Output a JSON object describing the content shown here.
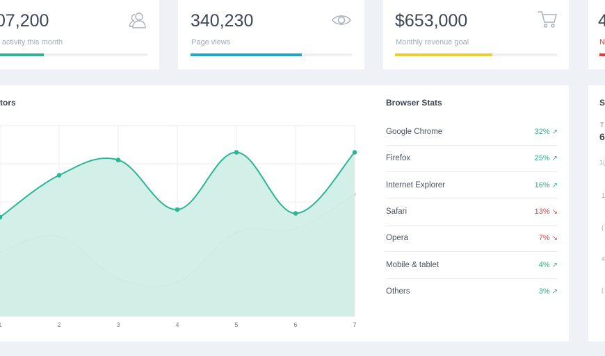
{
  "stats": [
    {
      "value": "07,200",
      "label": "r activity this month",
      "icon": "users-icon",
      "color": "#2cb494",
      "fill": 0.33
    },
    {
      "value": "340,230",
      "label": "Page views",
      "icon": "eye-icon",
      "color": "#1fa7c8",
      "fill": 0.69
    },
    {
      "value": "$653,000",
      "label": "Monthly revenue goal",
      "icon": "cart-icon",
      "color": "#f0cd2d",
      "fill": 0.6
    },
    {
      "value": "4",
      "label": "N",
      "icon": "",
      "color": "#e53935",
      "fill": 0.5
    }
  ],
  "visitors": {
    "title": "tors"
  },
  "chart_data": {
    "type": "area",
    "title": "tors",
    "x": [
      1,
      2,
      3,
      4,
      5,
      6,
      7
    ],
    "series": [
      {
        "values": [
          24,
          13,
          9,
          22,
          7,
          23,
          7
        ],
        "color": "#2cb494"
      },
      {
        "values": [
          33,
          29,
          40,
          41,
          28,
          27,
          18
        ],
        "color": "#cfcfcf"
      }
    ],
    "xlim": [
      1,
      7
    ],
    "grid": true
  },
  "browser_stats": {
    "title": "Browser Stats",
    "rows": [
      {
        "name": "Google Chrome",
        "value": "32%",
        "trend": "↗",
        "up": true
      },
      {
        "name": "Firefox",
        "value": "25%",
        "trend": "↗",
        "up": true
      },
      {
        "name": "Internet Explorer",
        "value": "16%",
        "trend": "↗",
        "up": true
      },
      {
        "name": "Safari",
        "value": "13%",
        "trend": "↘",
        "up": false
      },
      {
        "name": "Opera",
        "value": "7%",
        "trend": "↘",
        "up": false
      },
      {
        "name": "Mobile & tablet",
        "value": "4%",
        "trend": "↗",
        "up": true
      },
      {
        "name": "Others",
        "value": "3%",
        "trend": "↗",
        "up": true
      }
    ]
  },
  "side_card": {
    "title": "S",
    "line1": "T",
    "line2": "6",
    "line3": "1(",
    "axis": [
      "1",
      "(",
      "4",
      "("
    ]
  }
}
